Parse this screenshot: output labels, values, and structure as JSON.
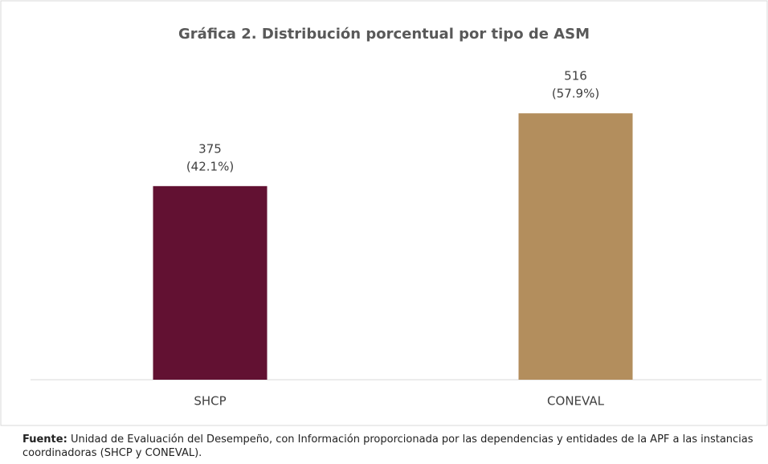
{
  "chart_data": {
    "type": "bar",
    "title": "Gráfica 2. Distribución porcentual por tipo de ASM",
    "categories": [
      "SHCP",
      "CONEVAL"
    ],
    "values": [
      375,
      516
    ],
    "share_labels": [
      "(42.1%)",
      "(57.9%)"
    ],
    "colors": [
      "#621132",
      "#b38e5d"
    ],
    "ylim": [
      0,
      580
    ]
  },
  "footer": {
    "label": "Fuente:",
    "text": "Unidad de Evaluación del Desempeño, con Información proporcionada por las dependencias y entidades de la APF a las instancias coordinadoras (SHCP y CONEVAL)."
  }
}
